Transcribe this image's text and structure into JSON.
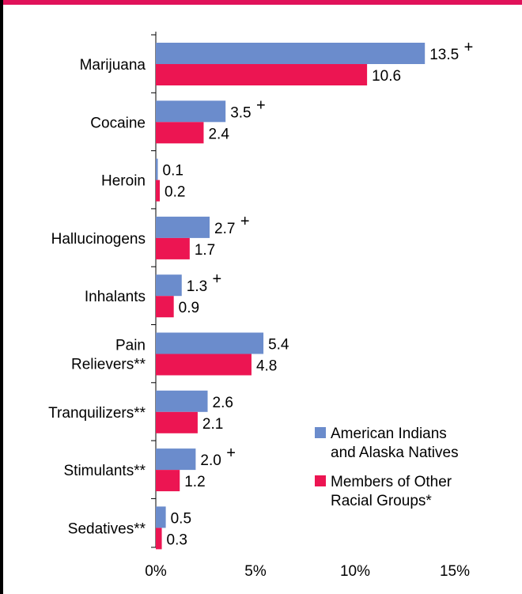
{
  "chart_data": {
    "type": "bar",
    "orientation": "horizontal",
    "categories": [
      [
        "Marijuana"
      ],
      [
        "Cocaine"
      ],
      [
        "Heroin"
      ],
      [
        "Hallucinogens"
      ],
      [
        "Inhalants"
      ],
      [
        "Pain",
        "Relievers**"
      ],
      [
        "Tranquilizers**"
      ],
      [
        "Stimulants**"
      ],
      [
        "Sedatives**"
      ]
    ],
    "series": [
      {
        "name": "American Indians and Alaska Natives",
        "legend_lines": [
          "American Indians",
          "and Alaska Natives"
        ],
        "color": "#6b8ccc",
        "values": [
          13.5,
          3.5,
          0.1,
          2.7,
          1.3,
          5.4,
          2.6,
          2.0,
          0.5
        ],
        "labels": [
          "13.5",
          "3.5",
          "0.1",
          "2.7",
          "1.3",
          "5.4",
          "2.6",
          "2.0",
          "0.5"
        ],
        "significant": [
          true,
          true,
          false,
          true,
          true,
          false,
          false,
          true,
          false
        ]
      },
      {
        "name": "Members of Other Racial Groups*",
        "legend_lines": [
          "Members of Other",
          "Racial Groups*"
        ],
        "color": "#ec1552",
        "values": [
          10.6,
          2.4,
          0.2,
          1.7,
          0.9,
          4.8,
          2.1,
          1.2,
          0.3
        ],
        "labels": [
          "10.6",
          "2.4",
          "0.2",
          "1.7",
          "0.9",
          "4.8",
          "2.1",
          "1.2",
          "0.3"
        ],
        "significant": [
          false,
          false,
          false,
          false,
          false,
          false,
          false,
          false,
          false
        ]
      }
    ],
    "significance_marker": "+",
    "x_ticks": [
      "0%",
      "5%",
      "10%",
      "15%"
    ],
    "x_tick_values": [
      0,
      5,
      10,
      15
    ],
    "xlim": [
      0,
      15
    ],
    "grid": false,
    "legend_position": "lower-right"
  }
}
